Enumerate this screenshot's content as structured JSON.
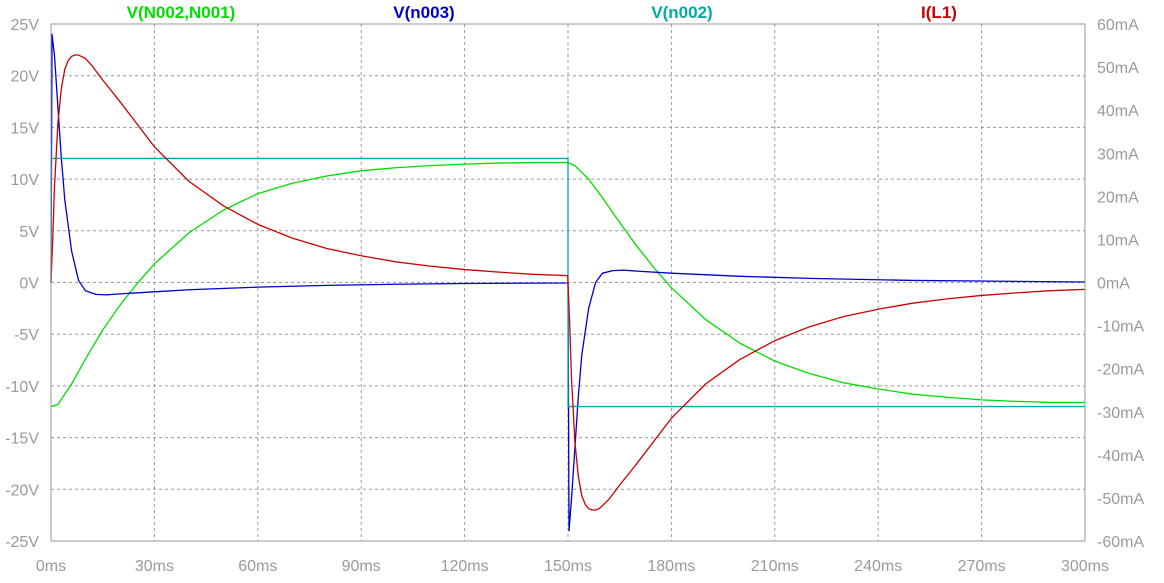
{
  "chart_data": {
    "type": "line",
    "title": "",
    "xlabel": "",
    "ylabel": "",
    "y2label": "",
    "x_unit": "ms",
    "xlim": [
      0,
      300
    ],
    "ylim": [
      -25,
      25
    ],
    "y2lim": [
      -60,
      60
    ],
    "grid": true,
    "x_ticks": [
      0,
      30,
      60,
      90,
      120,
      150,
      180,
      210,
      240,
      270,
      300
    ],
    "x_tick_labels": [
      "0ms",
      "30ms",
      "60ms",
      "90ms",
      "120ms",
      "150ms",
      "180ms",
      "210ms",
      "240ms",
      "270ms",
      "300ms"
    ],
    "y_ticks": [
      25,
      20,
      15,
      10,
      5,
      0,
      -5,
      -10,
      -15,
      -20,
      -25
    ],
    "y_tick_labels": [
      "25V",
      "20V",
      "15V",
      "10V",
      "5V",
      "0V",
      "-5V",
      "-10V",
      "-15V",
      "-20V",
      "-25V"
    ],
    "y2_ticks": [
      60,
      50,
      40,
      30,
      20,
      10,
      0,
      -10,
      -20,
      -30,
      -40,
      -50,
      -60
    ],
    "y2_tick_labels": [
      "60mA",
      "50mA",
      "40mA",
      "30mA",
      "20mA",
      "10mA",
      "0mA",
      "-10mA",
      "-20mA",
      "-30mA",
      "-40mA",
      "-50mA",
      "-60mA"
    ],
    "series": [
      {
        "name": "V(N002,N001)",
        "color": "#00dd00",
        "axis": "left",
        "x": [
          0,
          2,
          6,
          10,
          15,
          20,
          25,
          30,
          40,
          50,
          60,
          70,
          80,
          90,
          100,
          110,
          120,
          130,
          140,
          148,
          150,
          152,
          156,
          160,
          165,
          170,
          175,
          180,
          190,
          200,
          210,
          220,
          230,
          240,
          250,
          260,
          270,
          280,
          290,
          300
        ],
        "y": [
          -12,
          -11.8,
          -9.8,
          -7.4,
          -4.6,
          -2.2,
          -0.1,
          1.8,
          4.8,
          7.0,
          8.6,
          9.6,
          10.3,
          10.8,
          11.1,
          11.3,
          11.45,
          11.55,
          11.6,
          11.6,
          11.6,
          11.3,
          10.0,
          8.2,
          5.8,
          3.5,
          1.4,
          -0.5,
          -3.6,
          -5.9,
          -7.6,
          -8.8,
          -9.7,
          -10.3,
          -10.8,
          -11.1,
          -11.35,
          -11.5,
          -11.6,
          -11.6
        ]
      },
      {
        "name": "V(n003)",
        "color": "#0000cc",
        "axis": "left",
        "x": [
          0,
          0.3,
          1,
          2,
          3,
          4,
          6,
          8,
          10,
          13,
          16,
          20,
          30,
          40,
          60,
          80,
          100,
          120,
          140,
          149.8,
          150,
          150.3,
          151,
          152,
          153,
          154,
          156,
          158,
          160,
          163,
          166,
          170,
          180,
          200,
          220,
          250,
          300
        ],
        "y": [
          0,
          24,
          22,
          17,
          12,
          8,
          3,
          0.2,
          -0.8,
          -1.15,
          -1.2,
          -1.1,
          -0.9,
          -0.7,
          -0.45,
          -0.28,
          -0.17,
          -0.1,
          -0.06,
          -0.05,
          0,
          -24,
          -21,
          -16,
          -11,
          -7,
          -2.5,
          0,
          0.9,
          1.15,
          1.2,
          1.1,
          0.9,
          0.6,
          0.4,
          0.2,
          0.05
        ]
      },
      {
        "name": "V(n002)",
        "color": "#00aaaa",
        "axis": "left",
        "x": [
          0,
          0.01,
          149.99,
          150,
          150.01,
          300
        ],
        "y": [
          0,
          12,
          12,
          12,
          -12,
          -12
        ]
      },
      {
        "name": "I(L1)",
        "color": "#cc0000",
        "axis": "right",
        "x": [
          0,
          0.5,
          1,
          2,
          3,
          4,
          5,
          6,
          7,
          8,
          10,
          12,
          15,
          20,
          30,
          40,
          50,
          60,
          70,
          80,
          90,
          100,
          110,
          120,
          130,
          140,
          149.9,
          150,
          150.5,
          151,
          152,
          153,
          154,
          155,
          156,
          157,
          158,
          159,
          160,
          162,
          165,
          170,
          180,
          190,
          200,
          210,
          220,
          230,
          240,
          250,
          260,
          270,
          280,
          290,
          300
        ],
        "y": [
          0,
          10,
          22,
          37,
          45,
          49.5,
          51.5,
          52.5,
          52.8,
          52.8,
          52,
          50.2,
          47,
          42,
          31.5,
          23.5,
          17.8,
          13.5,
          10.3,
          7.9,
          6.2,
          4.8,
          3.8,
          3.0,
          2.4,
          1.9,
          1.6,
          0,
          -10,
          -22,
          -37,
          -45,
          -49.5,
          -51.5,
          -52.5,
          -52.8,
          -52.8,
          -52.5,
          -51.8,
          -50.2,
          -47,
          -42,
          -31.5,
          -23.5,
          -17.8,
          -13.5,
          -10.3,
          -7.9,
          -6.2,
          -4.8,
          -3.8,
          -3.0,
          -2.4,
          -1.9,
          -1.6
        ]
      }
    ]
  }
}
